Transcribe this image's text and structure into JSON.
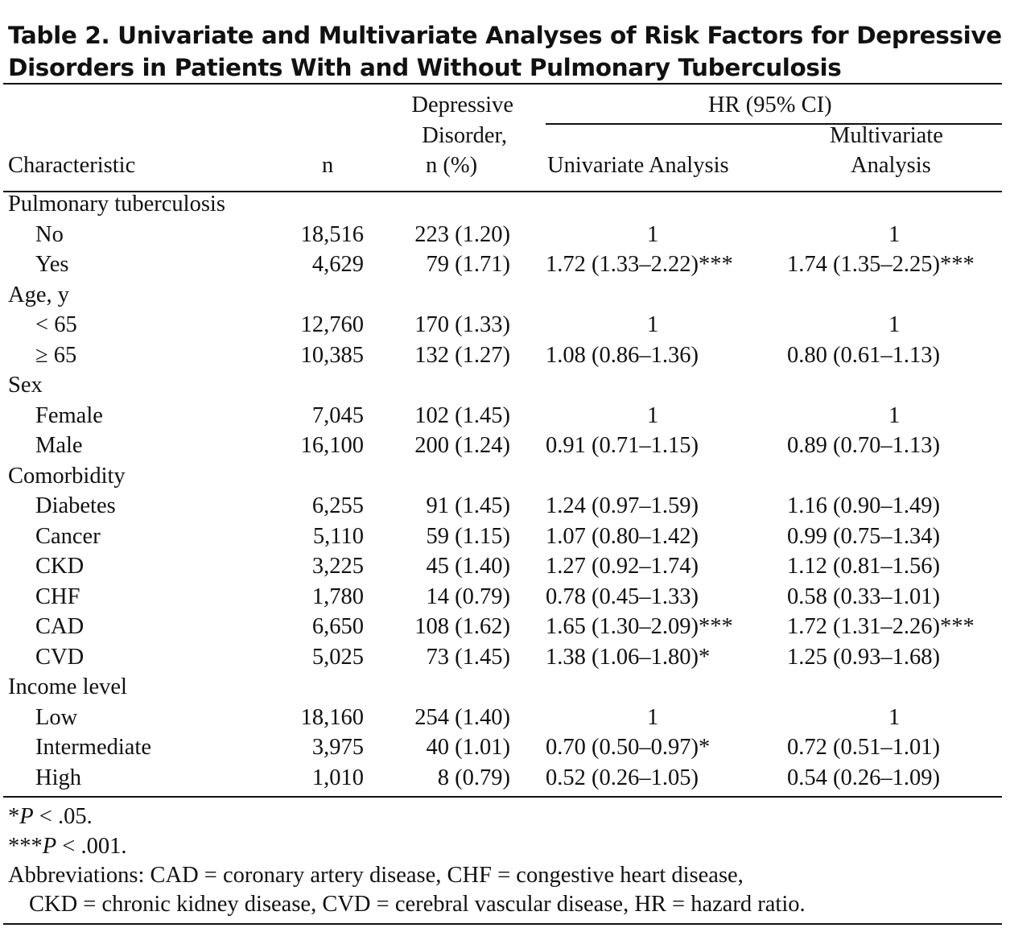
{
  "title": "Table 2. Univariate and Multivariate Analyses of Risk Factors for Depressive Disorders in Patients With and Without Pulmonary Tuberculosis",
  "header": {
    "characteristic": "Characteristic",
    "n": "n",
    "dep_line1": "Depressive",
    "dep_line2": "Disorder,",
    "dep_line3": "n (%)",
    "hr": "HR (95% CI)",
    "univariate": "Univariate Analysis",
    "multi_line1": "Multivariate",
    "multi_line2": "Analysis"
  },
  "rows": [
    {
      "label": "Pulmonary tuberculosis",
      "group": true
    },
    {
      "label": "No",
      "n": "18,516",
      "dep": "223 (1.20)",
      "uni": "1",
      "multi": "1"
    },
    {
      "label": "Yes",
      "n": "4,629",
      "dep": "79 (1.71)",
      "uni": "1.72 (1.33–2.22)***",
      "multi": "1.74 (1.35–2.25)***"
    },
    {
      "label": "Age, y",
      "group": true
    },
    {
      "label": "< 65",
      "n": "12,760",
      "dep": "170 (1.33)",
      "uni": "1",
      "multi": "1"
    },
    {
      "label": "≥ 65",
      "n": "10,385",
      "dep": "132 (1.27)",
      "uni": "1.08 (0.86–1.36)",
      "multi": "0.80 (0.61–1.13)"
    },
    {
      "label": "Sex",
      "group": true
    },
    {
      "label": "Female",
      "n": "7,045",
      "dep": "102 (1.45)",
      "uni": "1",
      "multi": "1"
    },
    {
      "label": "Male",
      "n": "16,100",
      "dep": "200 (1.24)",
      "uni": "0.91 (0.71–1.15)",
      "multi": "0.89 (0.70–1.13)"
    },
    {
      "label": "Comorbidity",
      "group": true
    },
    {
      "label": "Diabetes",
      "n": "6,255",
      "dep": "91 (1.45)",
      "uni": "1.24 (0.97–1.59)",
      "multi": "1.16 (0.90–1.49)"
    },
    {
      "label": "Cancer",
      "n": "5,110",
      "dep": "59 (1.15)",
      "uni": "1.07 (0.80–1.42)",
      "multi": "0.99 (0.75–1.34)"
    },
    {
      "label": "CKD",
      "n": "3,225",
      "dep": "45 (1.40)",
      "uni": "1.27 (0.92–1.74)",
      "multi": "1.12 (0.81–1.56)"
    },
    {
      "label": "CHF",
      "n": "1,780",
      "dep": "14 (0.79)",
      "uni": "0.78 (0.45–1.33)",
      "multi": "0.58 (0.33–1.01)"
    },
    {
      "label": "CAD",
      "n": "6,650",
      "dep": "108 (1.62)",
      "uni": "1.65 (1.30–2.09)***",
      "multi": "1.72 (1.31–2.26)***"
    },
    {
      "label": "CVD",
      "n": "5,025",
      "dep": "73 (1.45)",
      "uni": "1.38 (1.06–1.80)*",
      "multi": "1.25 (0.93–1.68)"
    },
    {
      "label": "Income level",
      "group": true
    },
    {
      "label": "Low",
      "n": "18,160",
      "dep": "254 (1.40)",
      "uni": "1",
      "multi": "1"
    },
    {
      "label": "Intermediate",
      "n": "3,975",
      "dep": "40 (1.01)",
      "uni": "0.70 (0.50–0.97)*",
      "multi": "0.72 (0.51–1.01)"
    },
    {
      "label": "High",
      "n": "1,010",
      "dep": "8 (0.79)",
      "uni": "0.52 (0.26–1.05)",
      "multi": "0.54 (0.26–1.09)"
    }
  ],
  "footnotes": {
    "f1_stars": "*",
    "f1_p": "P",
    "f1_rest": " < .05.",
    "f2_stars": "***",
    "f2_p": "P",
    "f2_rest": " < .001.",
    "abbr1": "Abbreviations: CAD = coronary artery disease, CHF = congestive heart disease,",
    "abbr2": "CKD = chronic kidney disease, CVD = cerebral vascular disease, HR = hazard ratio."
  }
}
